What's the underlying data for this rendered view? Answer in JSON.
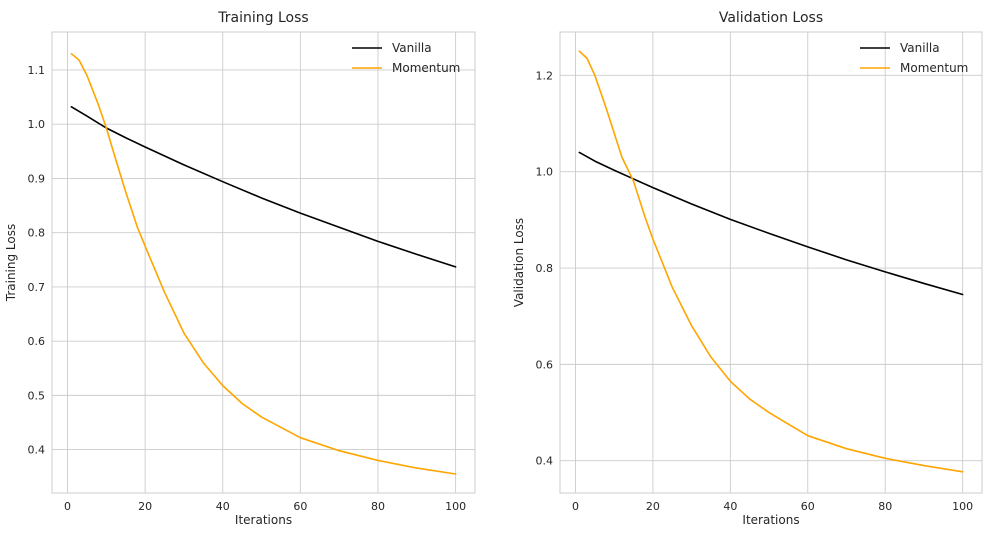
{
  "chart_data": [
    {
      "type": "line",
      "title": "Training Loss",
      "xlabel": "Iterations",
      "ylabel": "Training Loss",
      "xlim": [
        -4,
        105
      ],
      "ylim": [
        0.32,
        1.17
      ],
      "xticks": [
        0,
        20,
        40,
        60,
        80,
        100
      ],
      "yticks": [
        0.4,
        0.5,
        0.6,
        0.7,
        0.8,
        0.9,
        1.0,
        1.1
      ],
      "grid": true,
      "legend_position": "top-right",
      "series": [
        {
          "name": "Vanilla",
          "color": "#000000",
          "x": [
            1,
            5,
            10,
            15,
            20,
            30,
            40,
            50,
            60,
            70,
            80,
            90,
            100
          ],
          "y": [
            1.032,
            1.015,
            0.993,
            0.975,
            0.958,
            0.925,
            0.894,
            0.864,
            0.836,
            0.81,
            0.784,
            0.76,
            0.737
          ]
        },
        {
          "name": "Momentum",
          "color": "#ffa500",
          "x": [
            1,
            3,
            5,
            8,
            10,
            12,
            15,
            18,
            20,
            25,
            30,
            35,
            40,
            45,
            50,
            60,
            70,
            80,
            90,
            100
          ],
          "y": [
            1.13,
            1.118,
            1.09,
            1.035,
            0.993,
            0.945,
            0.875,
            0.81,
            0.775,
            0.69,
            0.615,
            0.56,
            0.518,
            0.485,
            0.46,
            0.422,
            0.398,
            0.38,
            0.366,
            0.355
          ]
        }
      ]
    },
    {
      "type": "line",
      "title": "Validation Loss",
      "xlabel": "Iterations",
      "ylabel": "Validation Loss",
      "xlim": [
        -4,
        105
      ],
      "ylim": [
        0.333,
        1.29
      ],
      "xticks": [
        0,
        20,
        40,
        60,
        80,
        100
      ],
      "yticks": [
        0.4,
        0.6,
        0.8,
        1.0,
        1.2
      ],
      "grid": true,
      "legend_position": "top-right",
      "series": [
        {
          "name": "Vanilla",
          "color": "#000000",
          "x": [
            1,
            5,
            10,
            15,
            20,
            30,
            40,
            50,
            60,
            70,
            80,
            90,
            100
          ],
          "y": [
            1.04,
            1.022,
            1.003,
            0.985,
            0.967,
            0.933,
            0.901,
            0.872,
            0.844,
            0.817,
            0.792,
            0.768,
            0.745
          ]
        },
        {
          "name": "Momentum",
          "color": "#ffa500",
          "x": [
            1,
            3,
            5,
            8,
            10,
            12,
            15,
            18,
            20,
            25,
            30,
            35,
            40,
            45,
            50,
            60,
            70,
            80,
            90,
            100
          ],
          "y": [
            1.25,
            1.235,
            1.2,
            1.13,
            1.08,
            1.03,
            0.98,
            0.905,
            0.86,
            0.76,
            0.68,
            0.615,
            0.565,
            0.528,
            0.5,
            0.452,
            0.425,
            0.405,
            0.39,
            0.377
          ]
        }
      ]
    }
  ]
}
